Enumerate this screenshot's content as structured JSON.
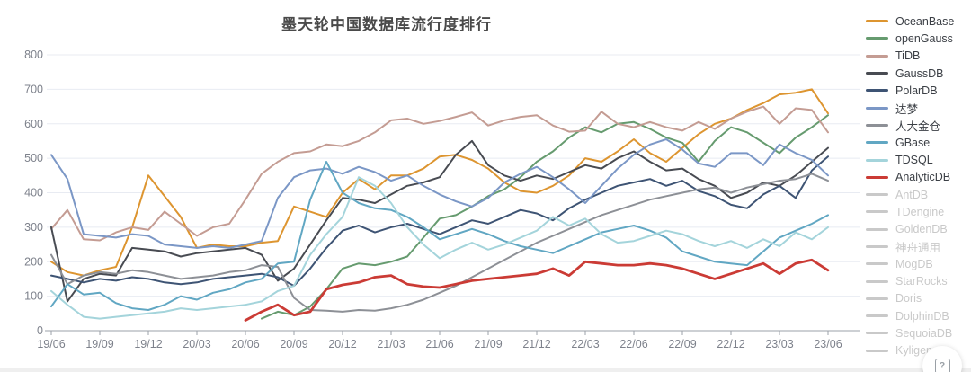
{
  "title": "墨天轮中国数据库流行度排行",
  "help_icon_glyph": "?",
  "axes": {
    "y_ticks": [
      0,
      100,
      200,
      300,
      400,
      500,
      600,
      700,
      800
    ],
    "x_tick_labels": [
      "19/06",
      "19/09",
      "19/12",
      "20/03",
      "20/06",
      "20/09",
      "20/12",
      "21/03",
      "21/06",
      "21/09",
      "21/12",
      "22/03",
      "22/06",
      "22/09",
      "22/12",
      "23/03",
      "23/06"
    ]
  },
  "colors": {
    "grid": "#e8ebf2",
    "axis_line": "#9ba0a8",
    "axis_label": "#7e828c",
    "inactive_legend": "#c9c9c9"
  },
  "legend_inactive": [
    "AntDB",
    "TDengine",
    "GoldenDB",
    "神舟通用",
    "MogDB",
    "StarRocks",
    "Doris",
    "DolphinDB",
    "SequoiaDB",
    "Kyligence"
  ],
  "chart_data": {
    "type": "line",
    "title": "墨天轮中国数据库流行度排行",
    "xlabel": "",
    "ylabel": "",
    "ylim": [
      0,
      800
    ],
    "grid": true,
    "legend_position": "right",
    "x": [
      "19/06",
      "19/07",
      "19/08",
      "19/09",
      "19/10",
      "19/11",
      "19/12",
      "20/01",
      "20/02",
      "20/03",
      "20/04",
      "20/05",
      "20/06",
      "20/07",
      "20/08",
      "20/09",
      "20/10",
      "20/11",
      "20/12",
      "21/01",
      "21/02",
      "21/03",
      "21/04",
      "21/05",
      "21/06",
      "21/07",
      "21/08",
      "21/09",
      "21/10",
      "21/11",
      "21/12",
      "22/01",
      "22/02",
      "22/03",
      "22/04",
      "22/05",
      "22/06",
      "22/07",
      "22/08",
      "22/09",
      "22/10",
      "22/11",
      "22/12",
      "23/01",
      "23/02",
      "23/03",
      "23/04",
      "23/05",
      "23/06"
    ],
    "series": [
      {
        "name": "OceanBase",
        "color": "#DD9530",
        "width": 2,
        "values": [
          200,
          170,
          160,
          175,
          185,
          300,
          450,
          390,
          330,
          240,
          250,
          245,
          245,
          255,
          260,
          360,
          345,
          330,
          400,
          440,
          410,
          450,
          450,
          470,
          505,
          510,
          495,
          470,
          430,
          405,
          400,
          420,
          450,
          500,
          490,
          520,
          555,
          515,
          490,
          530,
          570,
          600,
          615,
          640,
          660,
          685,
          690,
          700,
          630
        ]
      },
      {
        "name": "openGauss",
        "color": "#669B6F",
        "width": 2,
        "values": [
          null,
          null,
          null,
          null,
          null,
          null,
          null,
          null,
          null,
          null,
          null,
          null,
          null,
          35,
          55,
          45,
          70,
          120,
          180,
          195,
          190,
          200,
          215,
          270,
          325,
          335,
          360,
          390,
          410,
          445,
          490,
          520,
          560,
          590,
          575,
          600,
          605,
          585,
          560,
          545,
          490,
          550,
          590,
          575,
          545,
          515,
          560,
          590,
          625
        ]
      },
      {
        "name": "TiDB",
        "color": "#C49C93",
        "width": 2,
        "values": [
          295,
          350,
          265,
          262,
          285,
          300,
          292,
          345,
          310,
          275,
          300,
          310,
          380,
          455,
          490,
          515,
          520,
          540,
          535,
          550,
          575,
          610,
          615,
          600,
          608,
          620,
          633,
          595,
          610,
          620,
          625,
          595,
          577,
          580,
          635,
          600,
          590,
          605,
          590,
          580,
          605,
          585,
          615,
          635,
          650,
          600,
          645,
          640,
          575
        ]
      },
      {
        "name": "GaussDB",
        "color": "#484B52",
        "width": 2,
        "values": [
          300,
          85,
          150,
          165,
          160,
          240,
          235,
          230,
          215,
          225,
          230,
          235,
          240,
          220,
          145,
          180,
          250,
          320,
          385,
          380,
          370,
          395,
          420,
          430,
          445,
          510,
          550,
          480,
          450,
          435,
          450,
          440,
          460,
          480,
          470,
          500,
          520,
          490,
          465,
          470,
          440,
          420,
          385,
          400,
          430,
          420,
          450,
          490,
          530
        ]
      },
      {
        "name": "PolarDB",
        "color": "#3E5474",
        "width": 2,
        "values": [
          160,
          150,
          140,
          150,
          145,
          155,
          150,
          140,
          135,
          140,
          150,
          155,
          160,
          165,
          155,
          130,
          180,
          240,
          290,
          305,
          285,
          300,
          310,
          295,
          280,
          300,
          320,
          310,
          330,
          350,
          340,
          320,
          355,
          380,
          400,
          420,
          430,
          440,
          420,
          435,
          405,
          390,
          365,
          355,
          395,
          420,
          385,
          465,
          505
        ]
      },
      {
        "name": "达梦",
        "color": "#7B97C6",
        "width": 2,
        "values": [
          510,
          440,
          280,
          275,
          270,
          280,
          275,
          250,
          245,
          240,
          245,
          240,
          250,
          260,
          385,
          445,
          465,
          470,
          455,
          475,
          460,
          435,
          450,
          420,
          395,
          375,
          360,
          385,
          430,
          455,
          475,
          445,
          410,
          370,
          420,
          470,
          510,
          540,
          555,
          525,
          485,
          475,
          515,
          515,
          480,
          540,
          515,
          495,
          450
        ]
      },
      {
        "name": "人大金仓",
        "color": "#8D9096",
        "width": 2,
        "values": [
          220,
          135,
          160,
          170,
          165,
          175,
          170,
          160,
          150,
          155,
          160,
          170,
          175,
          190,
          185,
          95,
          60,
          58,
          55,
          60,
          58,
          65,
          75,
          90,
          110,
          130,
          155,
          180,
          205,
          230,
          255,
          275,
          295,
          315,
          335,
          350,
          365,
          380,
          390,
          400,
          410,
          415,
          400,
          415,
          425,
          435,
          440,
          455,
          435
        ]
      },
      {
        "name": "GBase",
        "color": "#61A7C3",
        "width": 2,
        "values": [
          70,
          135,
          105,
          110,
          80,
          65,
          60,
          75,
          100,
          90,
          110,
          120,
          140,
          150,
          195,
          200,
          380,
          490,
          400,
          370,
          355,
          350,
          330,
          300,
          265,
          280,
          295,
          280,
          260,
          245,
          235,
          225,
          245,
          265,
          285,
          295,
          305,
          290,
          270,
          230,
          215,
          200,
          195,
          190,
          230,
          270,
          290,
          310,
          335
        ]
      },
      {
        "name": "TDSQL",
        "color": "#A4D4DB",
        "width": 2,
        "values": [
          115,
          75,
          40,
          35,
          40,
          45,
          50,
          55,
          65,
          60,
          65,
          70,
          75,
          85,
          115,
          130,
          220,
          280,
          330,
          445,
          420,
          370,
          300,
          250,
          210,
          235,
          255,
          235,
          250,
          270,
          290,
          330,
          305,
          325,
          280,
          255,
          260,
          275,
          290,
          280,
          260,
          245,
          260,
          240,
          265,
          245,
          285,
          265,
          300
        ]
      },
      {
        "name": "AnalyticDB",
        "color": "#CB3B35",
        "width": 2.8,
        "values": [
          null,
          null,
          null,
          null,
          null,
          null,
          null,
          null,
          null,
          null,
          null,
          null,
          30,
          55,
          75,
          45,
          55,
          120,
          133,
          140,
          155,
          160,
          135,
          128,
          125,
          135,
          145,
          150,
          155,
          160,
          165,
          180,
          160,
          200,
          195,
          190,
          190,
          195,
          190,
          180,
          165,
          150,
          165,
          180,
          195,
          165,
          195,
          205,
          175
        ]
      }
    ]
  }
}
